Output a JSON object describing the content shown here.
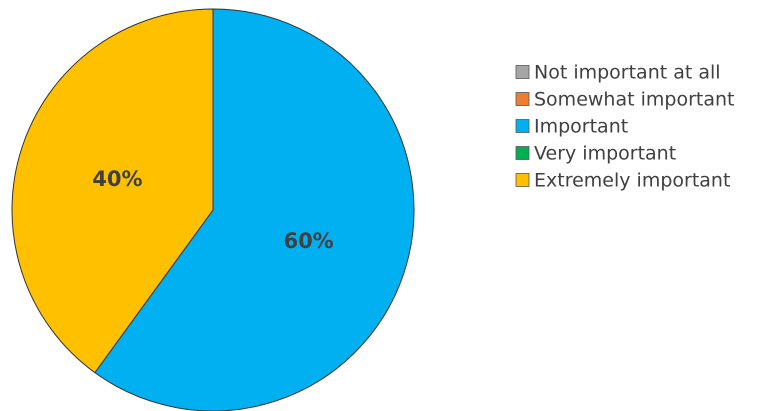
{
  "chart_data": {
    "type": "pie",
    "categories": [
      "Not important at all",
      "Somewhat important",
      "Important",
      "Very important",
      "Extremely important"
    ],
    "values": [
      0,
      0,
      60,
      0,
      40
    ],
    "value_labels": [
      "",
      "",
      "60%",
      "",
      "40%"
    ],
    "colors": [
      "#a5a5a5",
      "#ed7d31",
      "#00b0f0",
      "#00b050",
      "#ffc000"
    ],
    "title": "",
    "start_angle_deg": 0,
    "direction": "clockwise",
    "legend": {
      "position": "right"
    }
  }
}
